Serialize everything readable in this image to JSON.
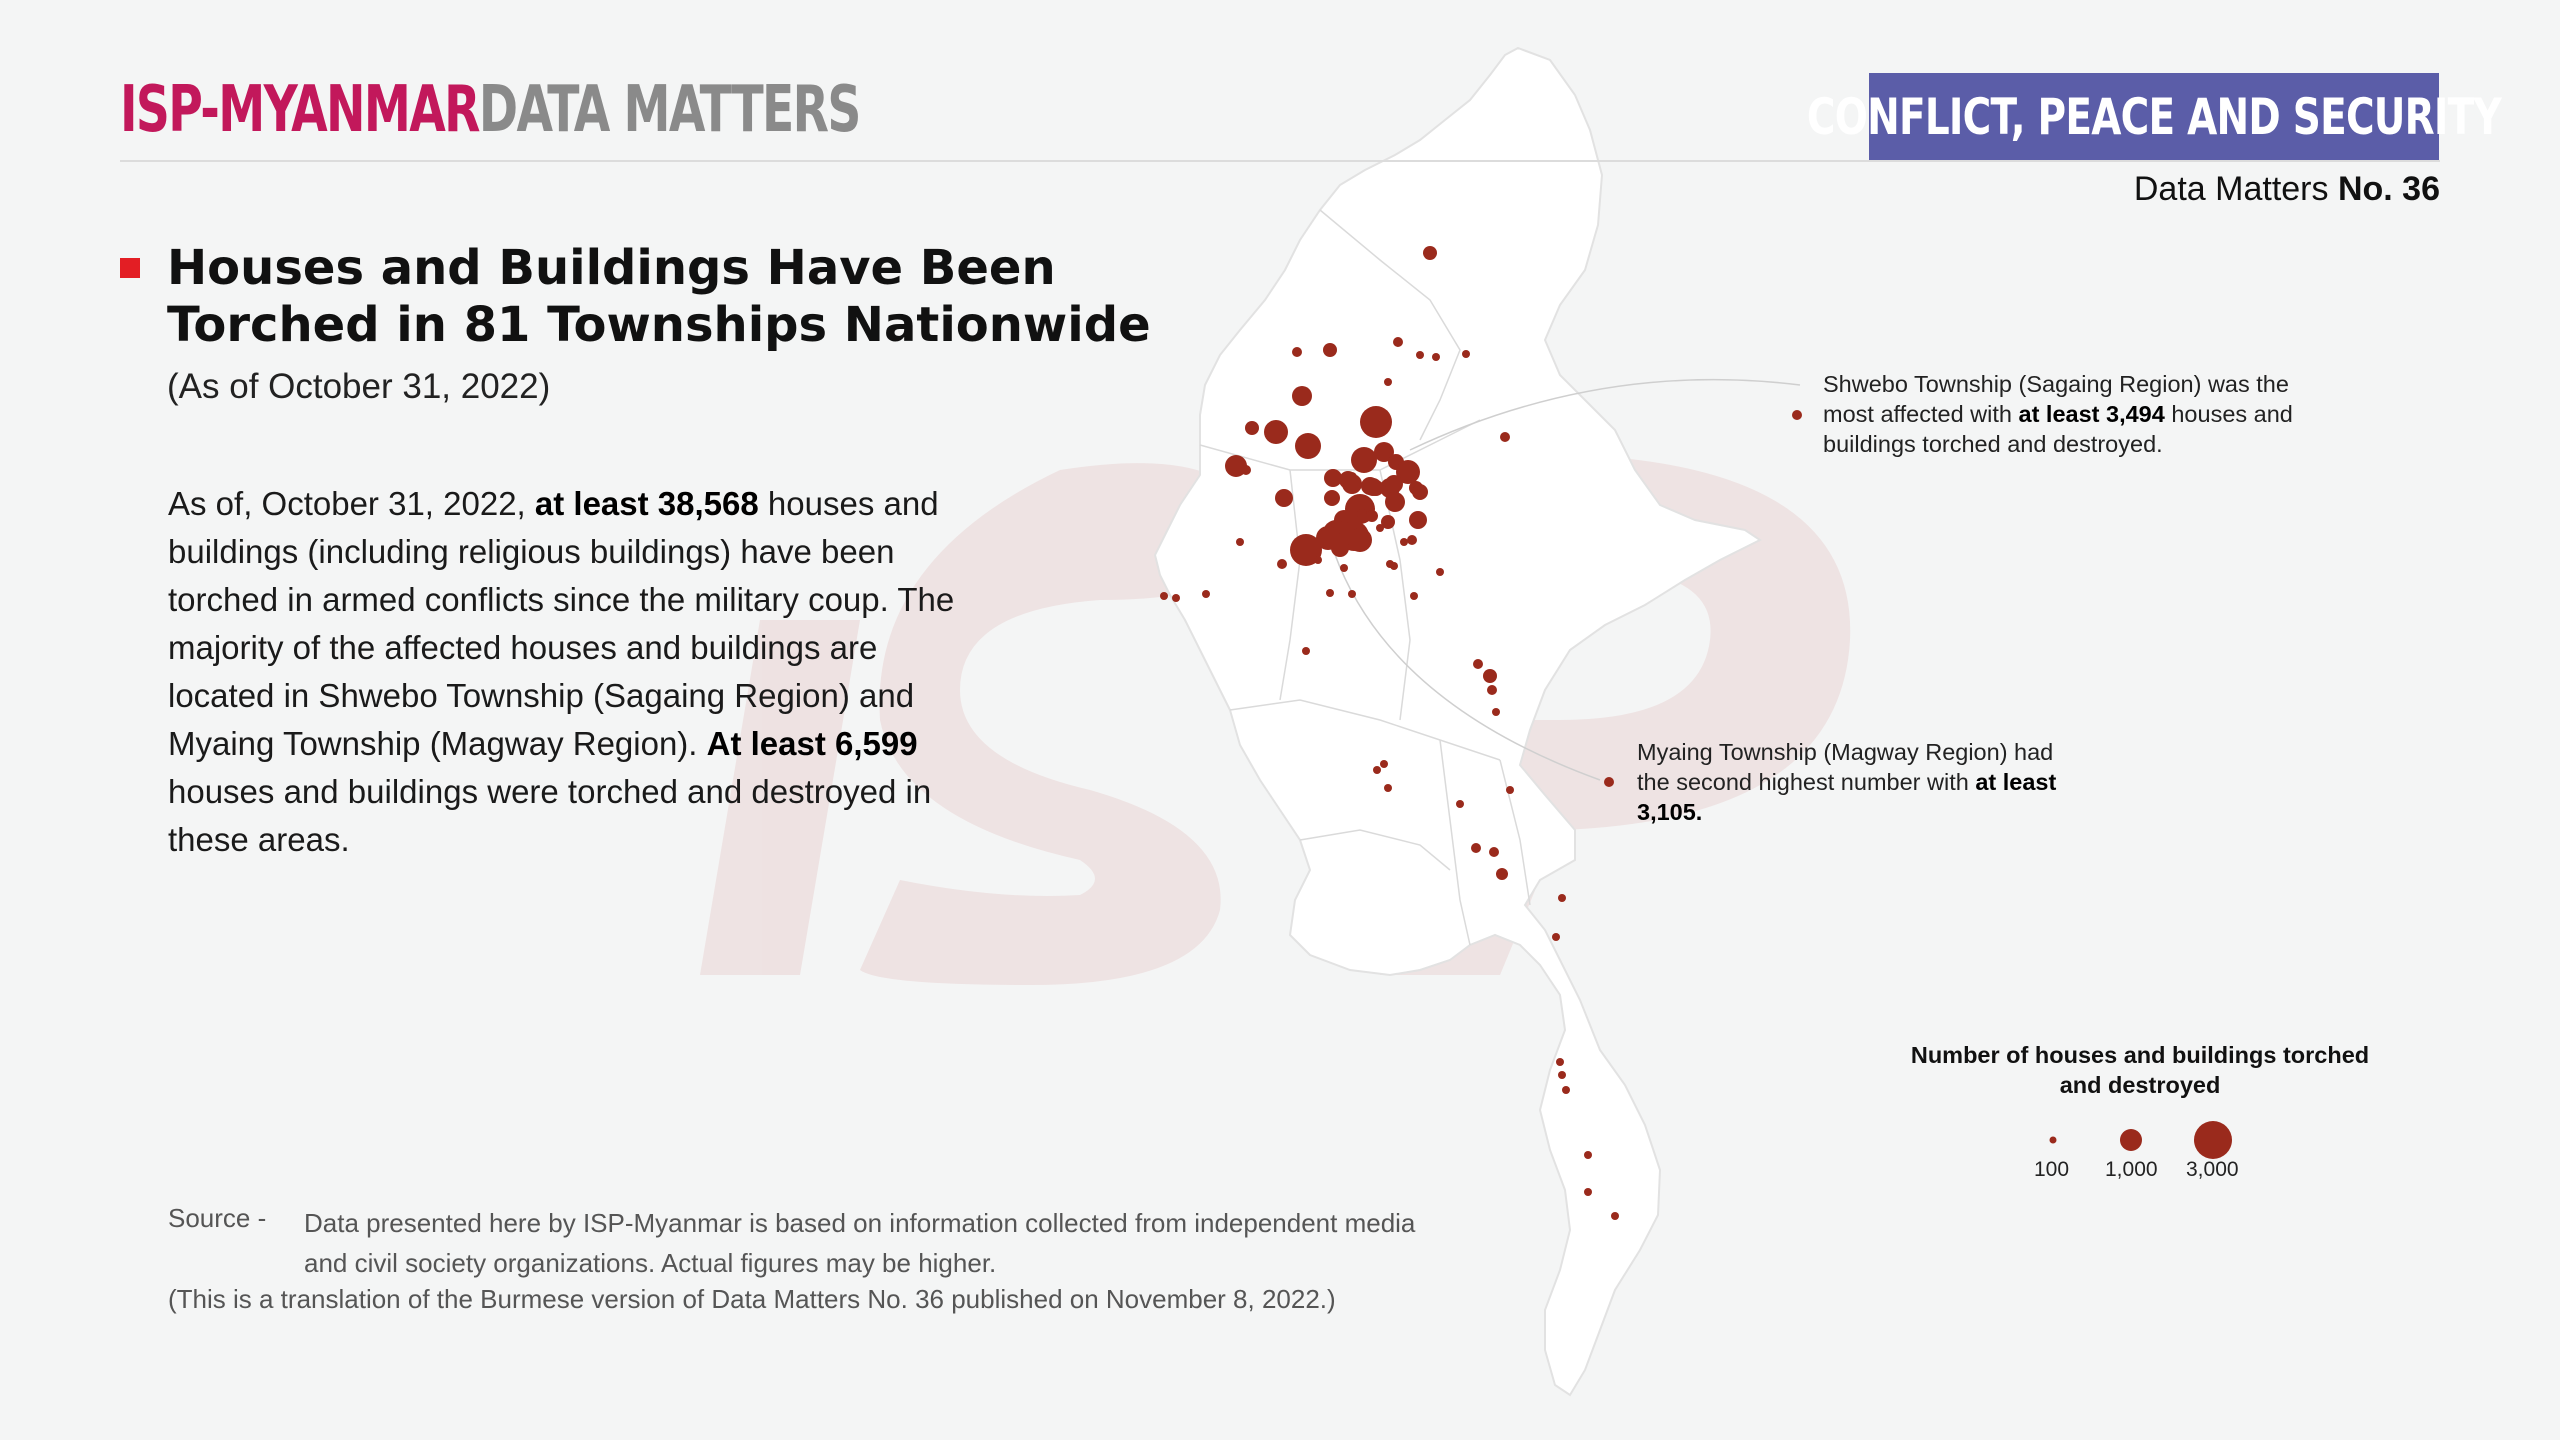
{
  "header": {
    "brand_primary": "ISP-MYANMAR",
    "brand_secondary": "DATA MATTERS",
    "category": "CONFLICT, PEACE AND SECURITY",
    "issue_prefix": "Data Matters",
    "issue_number": "No. 36",
    "colors": {
      "brand_primary": "#c2185b",
      "brand_secondary": "#8a8a8a",
      "category_bg": "#5b5da8",
      "bullet": "#e31e24",
      "marker": "#9a2a1c"
    }
  },
  "title": {
    "headline": "Houses and Buildings Have Been Torched in 81 Townships Nationwide",
    "date_note": "(As of October 31, 2022)"
  },
  "body": {
    "p1": "As of, October 31, 2022,",
    "p1_bold": "at least 38,568",
    "p2": "houses and buildings (including religious buildings) have been torched in armed conflicts since the military coup. The majority of the affected houses and buildings are located in Shwebo Township (Sagaing Region) and Myaing Township (Magway Region).",
    "p2_bold": "At least 6,599",
    "p3": "houses and buildings were torched and destroyed in these areas."
  },
  "callouts": {
    "shwebo_a": "Shwebo Township (Sagaing Region) was the most affected with",
    "shwebo_bold": "at least 3,494",
    "shwebo_b": "houses and buildings torched and destroyed.",
    "myaing_a": "Myaing Township (Magway Region) had the second highest number with",
    "myaing_bold": "at least 3,105."
  },
  "legend": {
    "title": "Number of houses and buildings torched and destroyed",
    "labels": [
      "100",
      "1,000",
      "3,000"
    ]
  },
  "footer": {
    "source_label": "Source -",
    "source_text": "Data presented here by ISP-Myanmar is based on information collected from independent media and civil society organizations. Actual figures may be higher.",
    "translation_note": "(This is a translation of the Burmese version of Data Matters No. 36 published on November 8, 2022.)"
  }
}
